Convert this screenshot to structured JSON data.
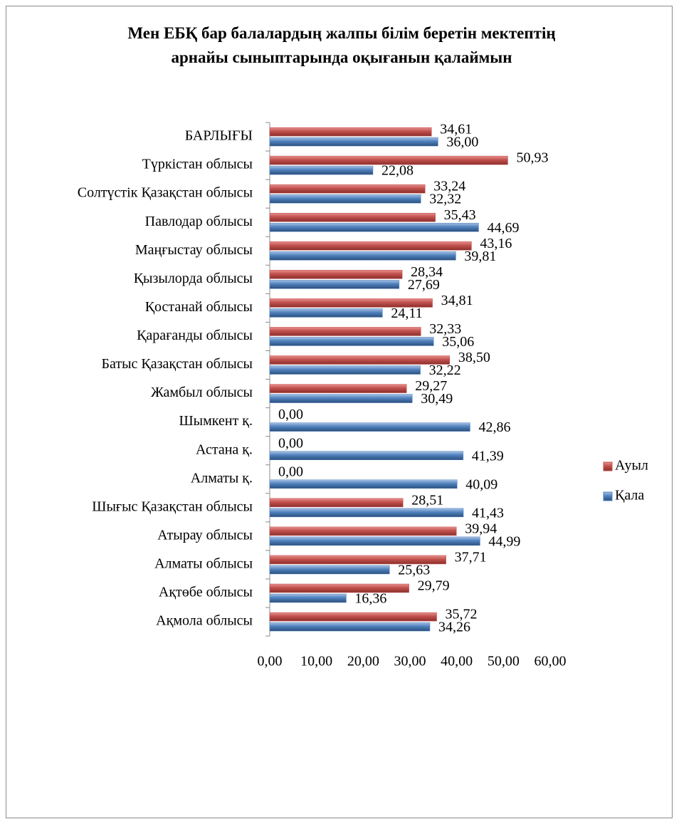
{
  "chart_data": {
    "type": "bar",
    "orientation": "horizontal",
    "title": "Мен ЕБҚ бар балалардың жалпы білім беретін мектептің арнайы сыныптарында оқығанын қалаймын",
    "categories": [
      "БАРЛЫҒЫ",
      "Түркістан облысы",
      "Солтүстік Қазақстан облысы",
      "Павлодар облысы",
      "Маңғыстау облысы",
      "Қызылорда облысы",
      "Қостанай облысы",
      "Қарағанды облысы",
      "Батыс Қазақстан облысы",
      "Жамбыл облысы",
      "Шымкент қ.",
      "Астана қ.",
      "Алматы қ.",
      "Шығыс Қазақстан облысы",
      "Атырау облысы",
      "Алматы облысы",
      "Ақтөбе облысы",
      "Ақмола облысы"
    ],
    "series": [
      {
        "name": "Ауыл",
        "color": "#c0504d",
        "values": [
          34.61,
          50.93,
          33.24,
          35.43,
          43.16,
          28.34,
          34.81,
          32.33,
          38.5,
          29.27,
          0,
          0,
          0,
          28.51,
          39.94,
          37.71,
          29.79,
          35.72
        ],
        "value_labels": [
          "34,61",
          "50,93",
          "33,24",
          "35,43",
          "43,16",
          "28,34",
          "34,81",
          "32,33",
          "38,50",
          "29,27",
          "0,00",
          "0,00",
          "0,00",
          "28,51",
          "39,94",
          "37,71",
          "29,79",
          "35,72"
        ]
      },
      {
        "name": "Қала",
        "color": "#4f81bd",
        "values": [
          36.0,
          22.08,
          32.32,
          44.69,
          39.81,
          27.69,
          24.11,
          35.06,
          32.22,
          30.49,
          42.86,
          41.39,
          40.09,
          41.43,
          44.99,
          25.63,
          16.36,
          34.26
        ],
        "value_labels": [
          "36,00",
          "22,08",
          "32,32",
          "44,69",
          "39,81",
          "27,69",
          "24,11",
          "35,06",
          "32,22",
          "30,49",
          "42,86",
          "41,39",
          "40,09",
          "41,43",
          "44,99",
          "25,63",
          "16,36",
          "34,26"
        ]
      }
    ],
    "xlim": [
      0,
      60
    ],
    "xticks": [
      {
        "value": 0,
        "label": "0,00"
      },
      {
        "value": 10,
        "label": "10,00"
      },
      {
        "value": 20,
        "label": "20,00"
      },
      {
        "value": 30,
        "label": "30,00"
      },
      {
        "value": 40,
        "label": "40,00"
      },
      {
        "value": 50,
        "label": "50,00"
      },
      {
        "value": 60,
        "label": "60,00"
      }
    ],
    "legend": "right"
  }
}
